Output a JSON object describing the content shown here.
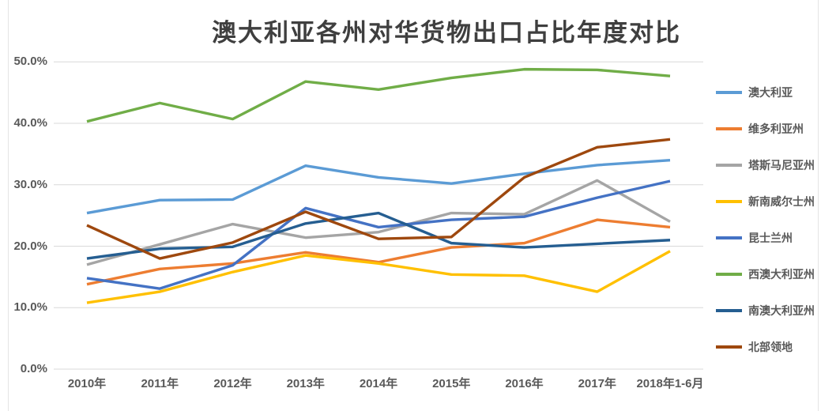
{
  "chart_data": {
    "type": "line",
    "title": "澳大利亚各州对华货物出口占比年度对比",
    "xlabel": "",
    "ylabel": "",
    "ylim": [
      0,
      50
    ],
    "y_tick_step": 10,
    "y_ticks": [
      "0.0%",
      "10.0%",
      "20.0%",
      "30.0%",
      "40.0%",
      "50.0%"
    ],
    "grid": "horizontal",
    "legend_position": "right",
    "categories": [
      "2010年",
      "2011年",
      "2012年",
      "2013年",
      "2014年",
      "2015年",
      "2016年",
      "2017年",
      "2018年1-6月"
    ],
    "series": [
      {
        "name": "澳大利亚",
        "slug": "australia",
        "color": "#5B9BD5",
        "values": [
          25.4,
          27.5,
          27.6,
          33.1,
          31.2,
          30.2,
          31.8,
          33.2,
          34.0
        ]
      },
      {
        "name": "维多利亚州",
        "slug": "victoria",
        "color": "#ED7D31",
        "values": [
          13.8,
          16.3,
          17.2,
          19.0,
          17.4,
          19.8,
          20.5,
          24.3,
          23.1
        ]
      },
      {
        "name": "塔斯马尼亚州",
        "slug": "tasmania",
        "color": "#A5A5A5",
        "values": [
          17.0,
          20.3,
          23.6,
          21.4,
          22.3,
          25.4,
          25.2,
          30.7,
          24.0
        ]
      },
      {
        "name": "新南威尔士州",
        "slug": "new-south-wales",
        "color": "#FFC000",
        "values": [
          10.8,
          12.6,
          15.8,
          18.5,
          17.2,
          15.4,
          15.2,
          12.6,
          19.2
        ]
      },
      {
        "name": "昆士兰州",
        "slug": "queensland",
        "color": "#4472C4",
        "values": [
          14.8,
          13.1,
          16.9,
          26.2,
          23.1,
          24.3,
          24.8,
          27.9,
          30.6
        ]
      },
      {
        "name": "西澳大利亚州",
        "slug": "western-australia",
        "color": "#70AD47",
        "values": [
          40.3,
          43.3,
          40.7,
          46.8,
          45.5,
          47.4,
          48.8,
          48.7,
          47.7
        ]
      },
      {
        "name": "南澳大利亚州",
        "slug": "south-australia",
        "color": "#255E91",
        "values": [
          18.0,
          19.6,
          19.9,
          23.7,
          25.4,
          20.5,
          19.8,
          20.4,
          21.0
        ]
      },
      {
        "name": "北部领地",
        "slug": "northern-territory",
        "color": "#9E480E",
        "values": [
          23.4,
          18.0,
          20.6,
          25.6,
          21.2,
          21.5,
          31.2,
          36.1,
          37.4
        ]
      }
    ]
  }
}
